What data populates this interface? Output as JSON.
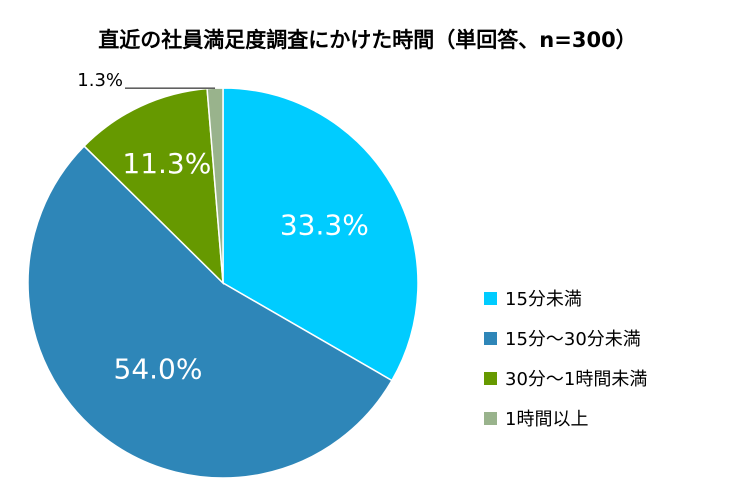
{
  "chart_data": {
    "type": "pie",
    "title": "直近の社員満足度調査にかけた時間（単回答、n=300）",
    "categories": [
      "15分未満",
      "15分～30分未満",
      "30分～1時間未満",
      "1時間以上"
    ],
    "values": [
      33.3,
      54.0,
      11.3,
      1.3
    ],
    "value_labels": [
      "33.3%",
      "54.0%",
      "11.3%",
      "1.3%"
    ],
    "colors": [
      "#00CCFF",
      "#2E86B8",
      "#669900",
      "#99B38C"
    ],
    "legend_position": "right"
  }
}
